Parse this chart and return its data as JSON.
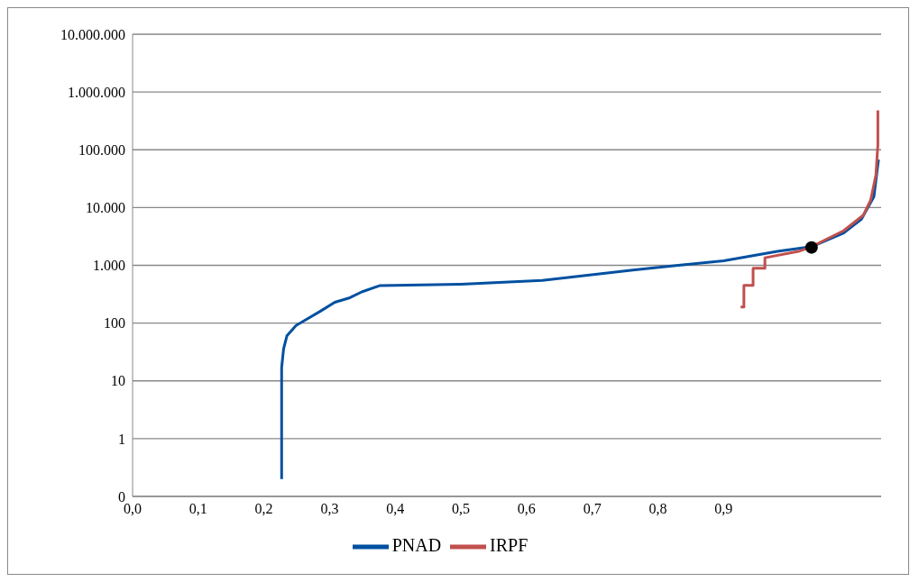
{
  "chart_data": {
    "type": "line",
    "xlim": [
      0,
      1.14
    ],
    "xticks": [
      {
        "value": 0,
        "label": "0,0"
      },
      {
        "value": 0.1,
        "label": "0,1"
      },
      {
        "value": 0.2,
        "label": "0,2"
      },
      {
        "value": 0.3,
        "label": "0,3"
      },
      {
        "value": 0.4,
        "label": "0,4"
      },
      {
        "value": 0.5,
        "label": "0,5"
      },
      {
        "value": 0.6,
        "label": "0,6"
      },
      {
        "value": 0.7,
        "label": "0,7"
      },
      {
        "value": 0.8,
        "label": "0,8"
      },
      {
        "value": 0.9,
        "label": "0,9"
      }
    ],
    "ylim": [
      0.1,
      10000000
    ],
    "yticks": [
      {
        "value": 0.1,
        "label": "0"
      },
      1,
      10,
      100,
      {
        "value": 1000,
        "label": "1.000"
      },
      {
        "value": 10000,
        "label": "10.000"
      },
      {
        "value": 100000,
        "label": "100.000"
      },
      {
        "value": 1000000,
        "label": "1.000.000"
      },
      {
        "value": 10000000,
        "label": "10.000.000"
      }
    ],
    "log": "y",
    "grid": "y",
    "legend": "bottom",
    "series": [
      {
        "name": "PNAD",
        "color": "#0050a0",
        "x": [
          0.227,
          0.227,
          0.23,
          0.235,
          0.249,
          0.263,
          0.285,
          0.308,
          0.331,
          0.349,
          0.377,
          0.399,
          0.5,
          0.624,
          0.762,
          0.9,
          0.982,
          1.034,
          1.083,
          1.11,
          1.129,
          1.136
        ],
        "values": [
          0.2,
          17,
          36,
          60,
          91,
          113,
          158,
          229,
          275,
          347,
          447,
          450,
          470,
          550,
          830,
          1200,
          1740,
          2100,
          3640,
          6310,
          15500,
          67600
        ]
      },
      {
        "name": "IRPF",
        "color": "#c0504d",
        "x": [
          0.926,
          0.931,
          0.931,
          0.945,
          0.945,
          0.963,
          0.963,
          1.014,
          1.034,
          1.083,
          1.113,
          1.124,
          1.132,
          1.135,
          1.135
        ],
        "values": [
          190,
          190,
          450,
          450,
          890,
          890,
          1350,
          1740,
          2100,
          3980,
          7410,
          13400,
          36300,
          120000,
          479000
        ]
      },
      {
        "type": "scatter",
        "color": "#000000",
        "marker": "circle",
        "x": [
          1.034
        ],
        "values": [
          2040
        ]
      }
    ]
  }
}
